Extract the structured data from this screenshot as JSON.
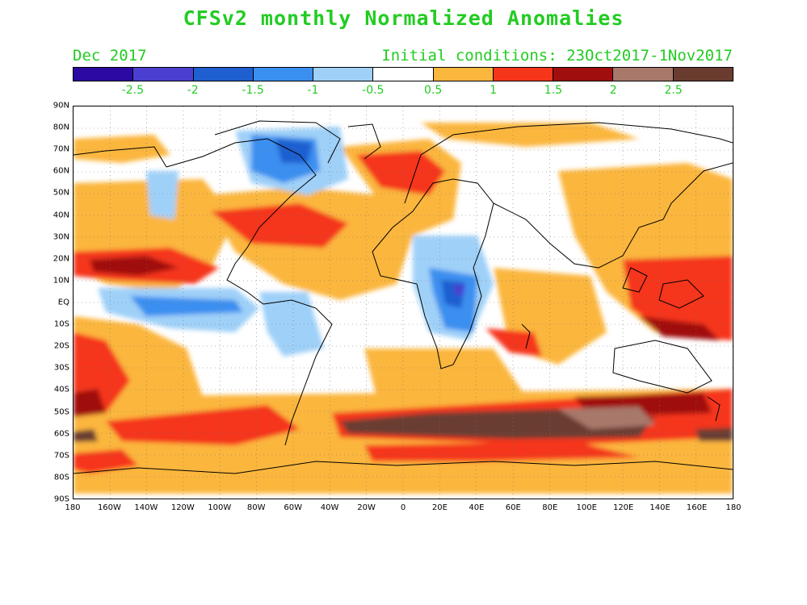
{
  "title": "CFSv2 monthly Normalized Anomalies",
  "valid_month": "Dec 2017",
  "initial_conditions": "Initial conditions: 23Oct2017-1Nov2017",
  "colorbar": {
    "colors": [
      "#2a0aa0",
      "#4a3fd0",
      "#1f5fd0",
      "#3a8ff0",
      "#9fd0f8",
      "#ffffff",
      "#fbb63d",
      "#f5361a",
      "#a00e0e",
      "#a8786a",
      "#6a3c30"
    ],
    "labels": [
      "-2.5",
      "-2",
      "-1.5",
      "-1",
      "-0.5",
      "0.5",
      "1",
      "1.5",
      "2",
      "2.5"
    ]
  },
  "axes": {
    "lat_labels": [
      "90N",
      "80N",
      "70N",
      "60N",
      "50N",
      "40N",
      "30N",
      "20N",
      "10N",
      "EQ",
      "10S",
      "20S",
      "30S",
      "40S",
      "50S",
      "60S",
      "70S",
      "80S",
      "90S"
    ],
    "lon_labels": [
      "180",
      "160W",
      "140W",
      "120W",
      "100W",
      "80W",
      "60W",
      "40W",
      "20W",
      "0",
      "20E",
      "40E",
      "60E",
      "80E",
      "100E",
      "120E",
      "140E",
      "160E",
      "180"
    ]
  }
}
